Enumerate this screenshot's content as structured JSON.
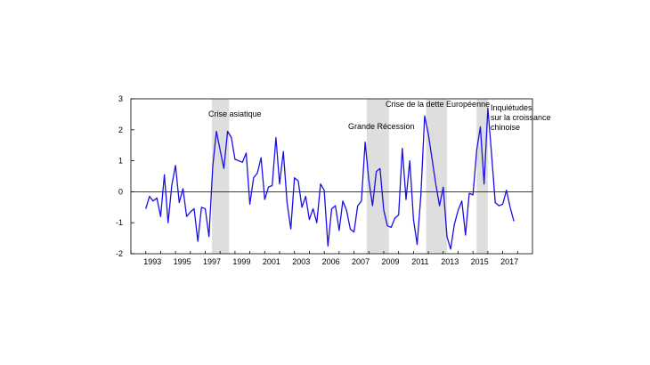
{
  "chart_data": {
    "type": "line",
    "title": "",
    "xlabel": "",
    "ylabel": "",
    "xlim": [
      1991.75,
      2018.75
    ],
    "ylim": [
      -2,
      3
    ],
    "yticks": [
      "3",
      "2",
      "1",
      "0",
      "-1",
      "-2"
    ],
    "xticks": [
      "1993",
      "1995",
      "1997",
      "1999",
      "2001",
      "2003",
      "2006",
      "2007",
      "2009",
      "2011",
      "2013",
      "2015",
      "2017"
    ],
    "zero_line": true,
    "grid": false,
    "line_color": "#1a10e6",
    "shade_color": "#dedede",
    "shaded_periods": [
      {
        "start": 1997.2,
        "end": 1998.35,
        "label": "Crise asiatique"
      },
      {
        "start": 2007.6,
        "end": 2009.1,
        "label": "Grande Récession"
      },
      {
        "start": 2011.6,
        "end": 2013.0,
        "label": "Crise de la dette Européenne"
      },
      {
        "start": 2015.0,
        "end": 2015.75,
        "label": "Inquiétudes sur la croissance chinoise"
      }
    ],
    "series": [
      {
        "x": [
          1992.75,
          1993.0,
          1993.25,
          1993.5,
          1993.75,
          1994.0,
          1994.25,
          1994.5,
          1994.75,
          1995.0,
          1995.25,
          1995.5,
          1995.75,
          1996.0,
          1996.25,
          1996.5,
          1996.75,
          1997.0,
          1997.25,
          1997.5,
          1997.75,
          1998.0,
          1998.25,
          1998.5,
          1998.75,
          1999.0,
          1999.25,
          1999.5,
          1999.75,
          2000.0,
          2000.25,
          2000.5,
          2000.75,
          2001.0,
          2001.25,
          2001.5,
          2001.75,
          2002.0,
          2002.25,
          2002.5,
          2002.75,
          2003.0,
          2003.25,
          2003.5,
          2003.75,
          2004.0,
          2004.25,
          2004.5,
          2004.75,
          2005.0,
          2005.25,
          2005.5,
          2005.75,
          2006.0,
          2006.25,
          2006.5,
          2006.75,
          2007.0,
          2007.25,
          2007.5,
          2007.75,
          2008.0,
          2008.25,
          2008.5,
          2008.75,
          2009.0,
          2009.25,
          2009.5,
          2009.75,
          2010.0,
          2010.25,
          2010.5,
          2010.75,
          2011.0,
          2011.25,
          2011.5,
          2011.75,
          2012.0,
          2012.25,
          2012.5,
          2012.75,
          2013.0,
          2013.25,
          2013.5,
          2013.75,
          2014.0,
          2014.25,
          2014.5,
          2014.75,
          2015.0,
          2015.25,
          2015.5,
          2015.75,
          2016.0,
          2016.25,
          2016.5,
          2016.75,
          2017.0,
          2017.25,
          2017.5
        ],
        "values": [
          -0.55,
          -0.15,
          -0.3,
          -0.2,
          -0.8,
          0.55,
          -1.0,
          0.2,
          0.85,
          -0.35,
          0.1,
          -0.8,
          -0.65,
          -0.55,
          -1.6,
          -0.5,
          -0.55,
          -1.45,
          0.8,
          1.95,
          1.35,
          0.75,
          1.95,
          1.75,
          1.05,
          1.0,
          0.95,
          1.25,
          -0.4,
          0.45,
          0.6,
          1.1,
          -0.25,
          0.15,
          0.2,
          1.75,
          0.25,
          1.3,
          -0.35,
          -1.2,
          0.45,
          0.35,
          -0.5,
          -0.15,
          -0.9,
          -0.55,
          -1.0,
          0.25,
          0.05,
          -1.75,
          -0.55,
          -0.45,
          -1.25,
          -0.3,
          -0.6,
          -1.2,
          -1.3,
          -0.45,
          -0.3,
          1.6,
          0.35,
          -0.45,
          0.65,
          0.75,
          -0.6,
          -1.1,
          -1.15,
          -0.85,
          -0.75,
          1.4,
          -0.25,
          1.0,
          -0.9,
          -1.7,
          -0.1,
          2.45,
          1.85,
          1.05,
          0.25,
          -0.45,
          0.15,
          -1.45,
          -1.85,
          -1.05,
          -0.6,
          -0.3,
          -1.4,
          -0.05,
          -0.1,
          1.35,
          2.1,
          0.25,
          2.7,
          1.2,
          -0.35,
          -0.45,
          -0.4,
          0.05,
          -0.5,
          -0.95
        ]
      }
    ]
  }
}
